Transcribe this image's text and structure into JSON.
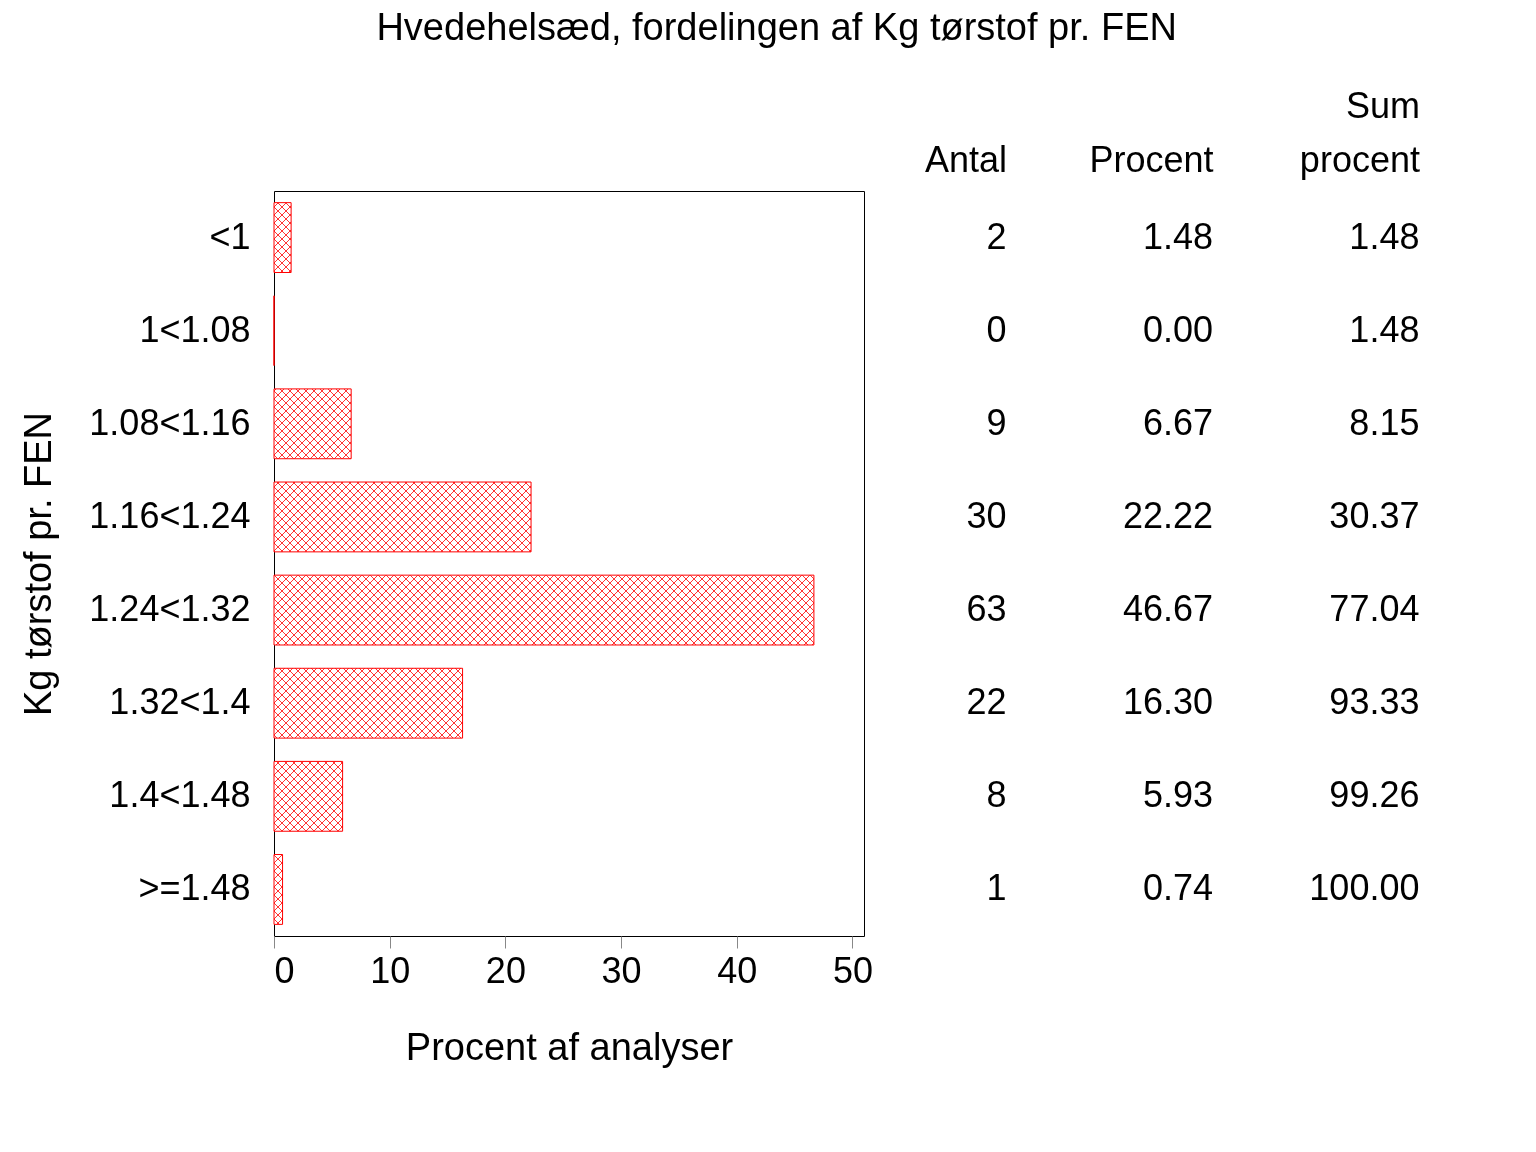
{
  "chart_data": {
    "type": "bar",
    "orientation": "horizontal",
    "title": "Hvedehelsæd, fordelingen af Kg tørstof pr. FEN",
    "xlabel": "Procent af analyser",
    "ylabel": "Kg tørstof pr. FEN",
    "categories": [
      "<1",
      "1<1.08",
      "1.08<1.16",
      "1.16<1.24",
      "1.24<1.32",
      "1.32<1.4",
      "1.4<1.48",
      ">=1.48"
    ],
    "values": [
      1.48,
      0,
      6.67,
      22.22,
      46.67,
      16.3,
      5.93,
      0.74
    ],
    "value_labels": [
      "1.48",
      "0.00",
      "6.67",
      "22.22",
      "46.67",
      "16.30",
      "5.93",
      "0.74"
    ],
    "color": "#ff0000",
    "xlim": [
      0,
      51
    ],
    "xticks": [
      0,
      10,
      20,
      30,
      40,
      50
    ],
    "annotations": [
      "Antal",
      "Procent",
      "Sum procent",
      "2",
      "0",
      "9",
      "30",
      "63",
      "22",
      "8",
      "1",
      "1.48",
      "1.48",
      "8.15",
      "30.37",
      "77.04",
      "93.33",
      "99.26",
      "100.00"
    ]
  }
}
